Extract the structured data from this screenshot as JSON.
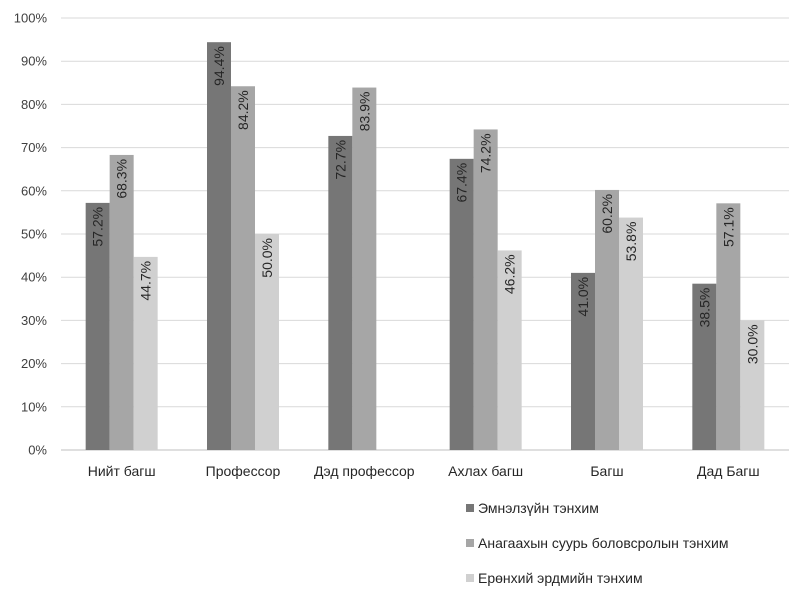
{
  "chart_data": {
    "type": "bar",
    "categories": [
      "Нийт багш",
      "Профессор",
      "Дэд профессор",
      "Ахлах багш",
      "Багш",
      "Дад Багш"
    ],
    "series": [
      {
        "name": "Эмнэлзүйн тэнхим",
        "color": "#767676",
        "values": [
          57.2,
          94.4,
          72.7,
          67.4,
          41.0,
          38.5
        ],
        "labels": [
          "57.2%",
          "94.4%",
          "72.7%",
          "67.4%",
          "41.0%",
          "38.5%"
        ]
      },
      {
        "name": "Анагаахын суурь боловсролын тэнхим",
        "color": "#a6a6a6",
        "values": [
          68.3,
          84.2,
          83.9,
          74.2,
          60.2,
          57.1
        ],
        "labels": [
          "68.3%",
          "84.2%",
          "83.9%",
          "74.2%",
          "60.2%",
          "57.1%"
        ]
      },
      {
        "name": "Ерөнхий эрдмийн тэнхим",
        "color": "#d0d0d0",
        "values": [
          44.7,
          50.0,
          null,
          46.2,
          53.8,
          30.0
        ],
        "labels": [
          "44.7%",
          "50.0%",
          null,
          "46.2%",
          "53.8%",
          "30.0%"
        ]
      }
    ],
    "yticks": [
      "0%",
      "10%",
      "20%",
      "30%",
      "40%",
      "50%",
      "60%",
      "70%",
      "80%",
      "90%",
      "100%"
    ],
    "ylim": [
      0,
      100
    ],
    "grid": true,
    "legend_position": "bottom-right"
  }
}
